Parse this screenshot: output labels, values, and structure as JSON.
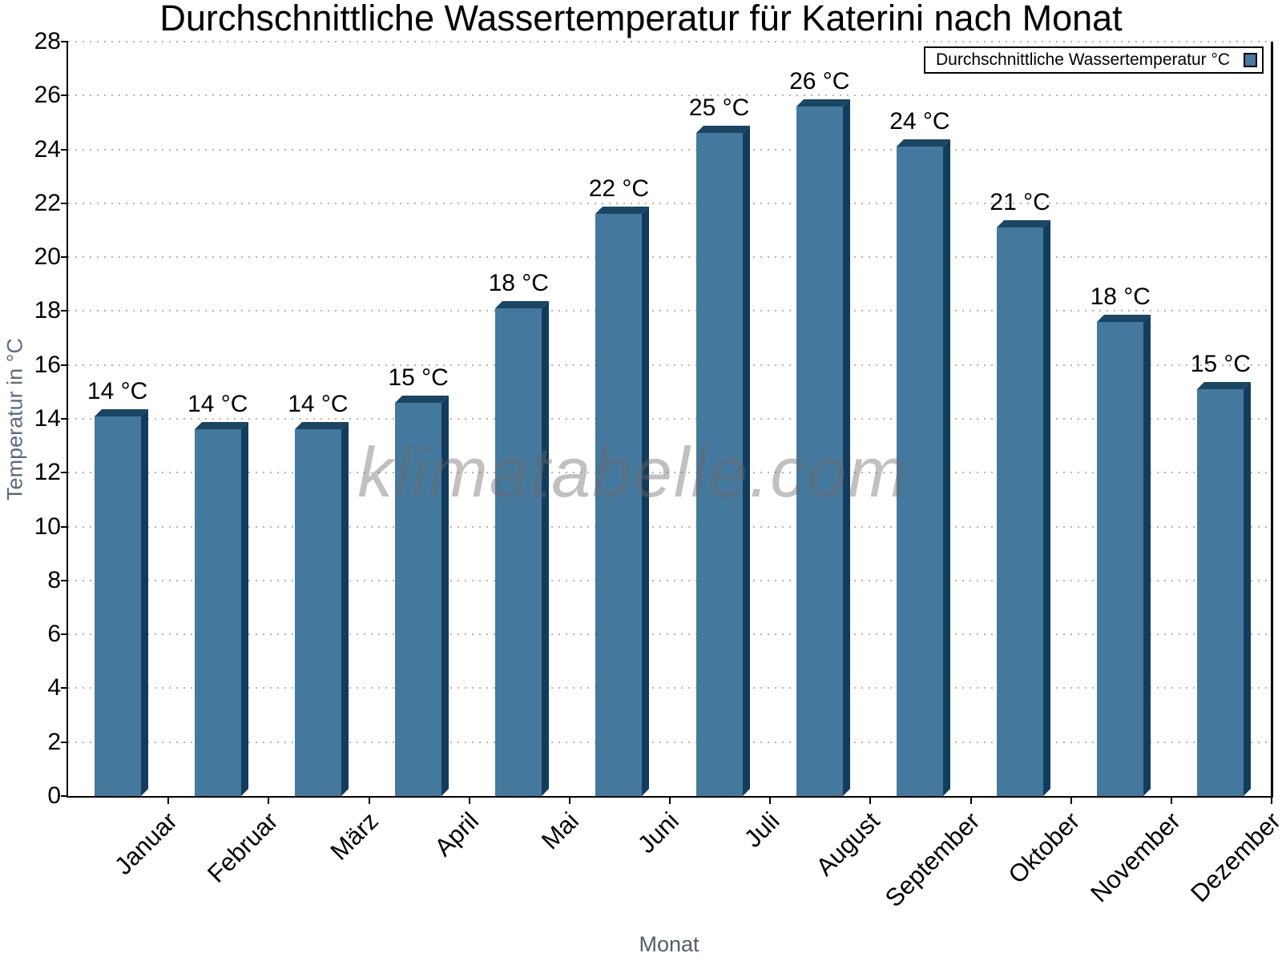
{
  "chart_data": {
    "type": "bar",
    "title": "Durchschnittliche Wassertemperatur für Katerini nach Monat",
    "xlabel": "Monat",
    "ylabel": "Temperatur in °C",
    "watermark": "klimatabelle.com",
    "legend": {
      "label": "Durchschnittliche Wassertemperatur °C",
      "position": "top-right"
    },
    "categories": [
      "Januar",
      "Februar",
      "März",
      "April",
      "Mai",
      "Juni",
      "Juli",
      "August",
      "September",
      "Oktober",
      "November",
      "Dezember"
    ],
    "values": [
      14.1,
      13.6,
      13.6,
      14.6,
      18.1,
      21.6,
      24.6,
      25.6,
      24.1,
      21.1,
      17.6,
      15.1
    ],
    "bar_labels": [
      "14 °C",
      "14 °C",
      "14 °C",
      "15 °C",
      "18 °C",
      "22 °C",
      "25 °C",
      "26 °C",
      "24 °C",
      "21 °C",
      "18 °C",
      "15 °C"
    ],
    "ylim": [
      0,
      28
    ],
    "ytick_step": 2,
    "grid": "horizontal-dotted",
    "legend_position": "top-right",
    "colors": {
      "bar_front": "#45789D",
      "bar_top": "#1A4563",
      "bar_side": "#123C5D",
      "legend_swatch": "#4779A1",
      "gridline": "#B4B4B4",
      "axis": "#000000",
      "tick_label": "#000000",
      "axis_title": "#5A6B7D",
      "watermark": "#8C8C8C"
    }
  }
}
